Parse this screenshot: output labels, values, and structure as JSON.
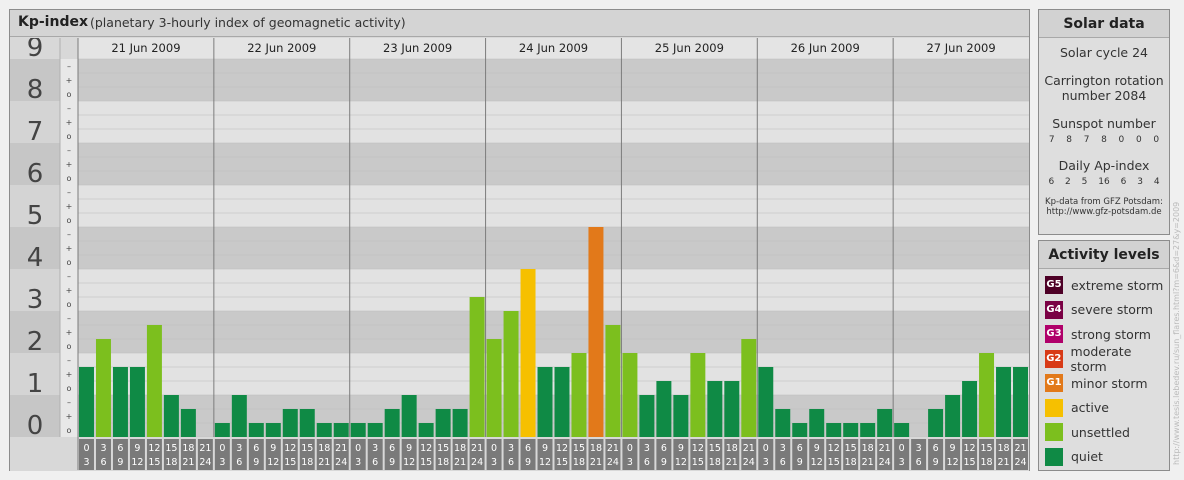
{
  "header": {
    "title": "Kp-index",
    "subtitle": "(planetary 3-hourly index of geomagnetic activity)"
  },
  "chart_data": {
    "type": "bar",
    "ylim": [
      0,
      9
    ],
    "y_major_labels": [
      "0",
      "1",
      "2",
      "3",
      "4",
      "5",
      "6",
      "7",
      "8",
      "9"
    ],
    "y_minor_labels": [
      "o",
      "+",
      "–"
    ],
    "days": [
      "21 Jun 2009",
      "22 Jun 2009",
      "23 Jun 2009",
      "24 Jun 2009",
      "25 Jun 2009",
      "26 Jun 2009",
      "27 Jun 2009"
    ],
    "interval_labels": [
      [
        "0",
        "3"
      ],
      [
        "3",
        "6"
      ],
      [
        "6",
        "9"
      ],
      [
        "9",
        "12"
      ],
      [
        "12",
        "15"
      ],
      [
        "15",
        "18"
      ],
      [
        "18",
        "21"
      ],
      [
        "21",
        "24"
      ]
    ],
    "values": [
      1.667,
      2.333,
      1.667,
      1.667,
      2.667,
      1.0,
      0.667,
      0.0,
      0.333,
      1.0,
      0.333,
      0.333,
      0.667,
      0.667,
      0.333,
      0.333,
      0.333,
      0.333,
      0.667,
      1.0,
      0.333,
      0.667,
      0.667,
      3.333,
      2.333,
      3.0,
      4.0,
      1.667,
      1.667,
      2.0,
      5.0,
      2.667,
      2.0,
      1.0,
      1.333,
      1.0,
      2.0,
      1.333,
      1.333,
      2.333,
      1.667,
      0.667,
      0.333,
      0.667,
      0.333,
      0.333,
      0.333,
      0.667,
      0.333,
      0.0,
      0.667,
      1.0,
      1.333,
      2.0,
      1.667,
      1.667
    ]
  },
  "solar": {
    "title": "Solar data",
    "cycle": "Solar cycle 24",
    "carrington": "Carrington rotation",
    "carrington_number": "number 2084",
    "sunspot_title": "Sunspot number",
    "sunspot_values": [
      "7",
      "8",
      "7",
      "8",
      "0",
      "0",
      "0"
    ],
    "ap_title": "Daily Ap-index",
    "ap_values": [
      "6",
      "2",
      "5",
      "16",
      "6",
      "3",
      "4"
    ],
    "note_line1": "Kp-data from GFZ Potsdam:",
    "note_line2": "http://www.gfz-potsdam.de"
  },
  "activity": {
    "title": "Activity levels",
    "levels": [
      {
        "code": "G5",
        "label": "extreme storm",
        "color": "#4d0026"
      },
      {
        "code": "G4",
        "label": "severe storm",
        "color": "#7a0044"
      },
      {
        "code": "G3",
        "label": "strong storm",
        "color": "#b0006a"
      },
      {
        "code": "G2",
        "label": "moderate storm",
        "color": "#d83a16"
      },
      {
        "code": "G1",
        "label": "minor storm",
        "color": "#e2791a"
      },
      {
        "code": "",
        "label": "active",
        "color": "#f6c000"
      },
      {
        "code": "",
        "label": "unsettled",
        "color": "#7cbf1e"
      },
      {
        "code": "",
        "label": "quiet",
        "color": "#0f8a45"
      }
    ]
  },
  "credit": "http://www.tesis.lebedev.ru/sun_flares.html?m=6&d=27&y=2009"
}
